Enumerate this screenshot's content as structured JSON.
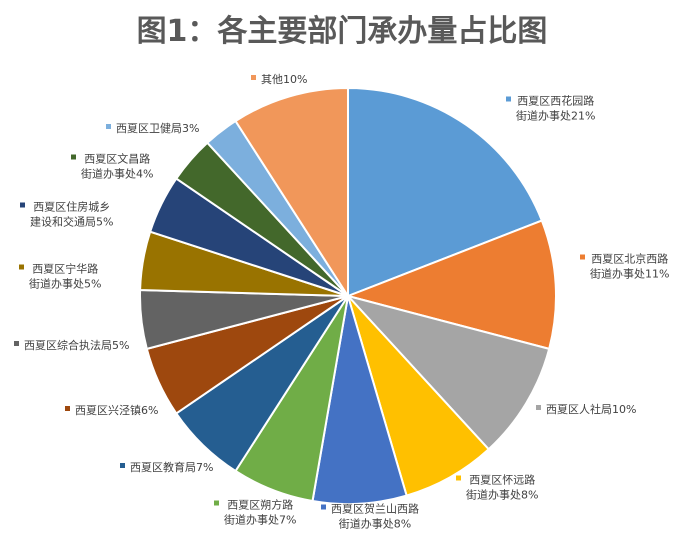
{
  "chart_data": {
    "type": "pie",
    "title": "图1：各主要部门承办量占比图",
    "start_angle_deg": 0,
    "direction": "clockwise",
    "slices": [
      {
        "label_lines": [
          "西夏区西花园路",
          "街道办事处21%"
        ],
        "value": 21,
        "color": "#5B9BD5"
      },
      {
        "label_lines": [
          "西夏区北京西路",
          "街道办事处11%"
        ],
        "value": 11,
        "color": "#ED7D31"
      },
      {
        "label_lines": [
          "西夏区人社局10%"
        ],
        "value": 10,
        "color": "#A5A5A5"
      },
      {
        "label_lines": [
          "西夏区怀远路",
          "街道办事处8%"
        ],
        "value": 8,
        "color": "#FFC000"
      },
      {
        "label_lines": [
          "西夏区贺兰山西路",
          "街道办事处8%"
        ],
        "value": 8,
        "color": "#4472C4"
      },
      {
        "label_lines": [
          "西夏区朔方路",
          "街道办事处7%"
        ],
        "value": 7,
        "color": "#70AD47"
      },
      {
        "label_lines": [
          "西夏区教育局7%"
        ],
        "value": 7,
        "color": "#255E91"
      },
      {
        "label_lines": [
          "西夏区兴泾镇6%"
        ],
        "value": 6,
        "color": "#9E480E"
      },
      {
        "label_lines": [
          "西夏区综合执法局5%"
        ],
        "value": 5,
        "color": "#636363"
      },
      {
        "label_lines": [
          "西夏区宁华路",
          "街道办事处5%"
        ],
        "value": 5,
        "color": "#997300"
      },
      {
        "label_lines": [
          "西夏区住房城乡",
          "建设和交通局5%"
        ],
        "value": 5,
        "color": "#264478"
      },
      {
        "label_lines": [
          "西夏区文昌路",
          "街道办事处4%"
        ],
        "value": 4,
        "color": "#43682B"
      },
      {
        "label_lines": [
          "西夏区卫健局3%"
        ],
        "value": 3,
        "color": "#7CAFDD"
      },
      {
        "label_lines": [
          "其他10%"
        ],
        "value": 10,
        "color": "#F1975A"
      }
    ]
  }
}
